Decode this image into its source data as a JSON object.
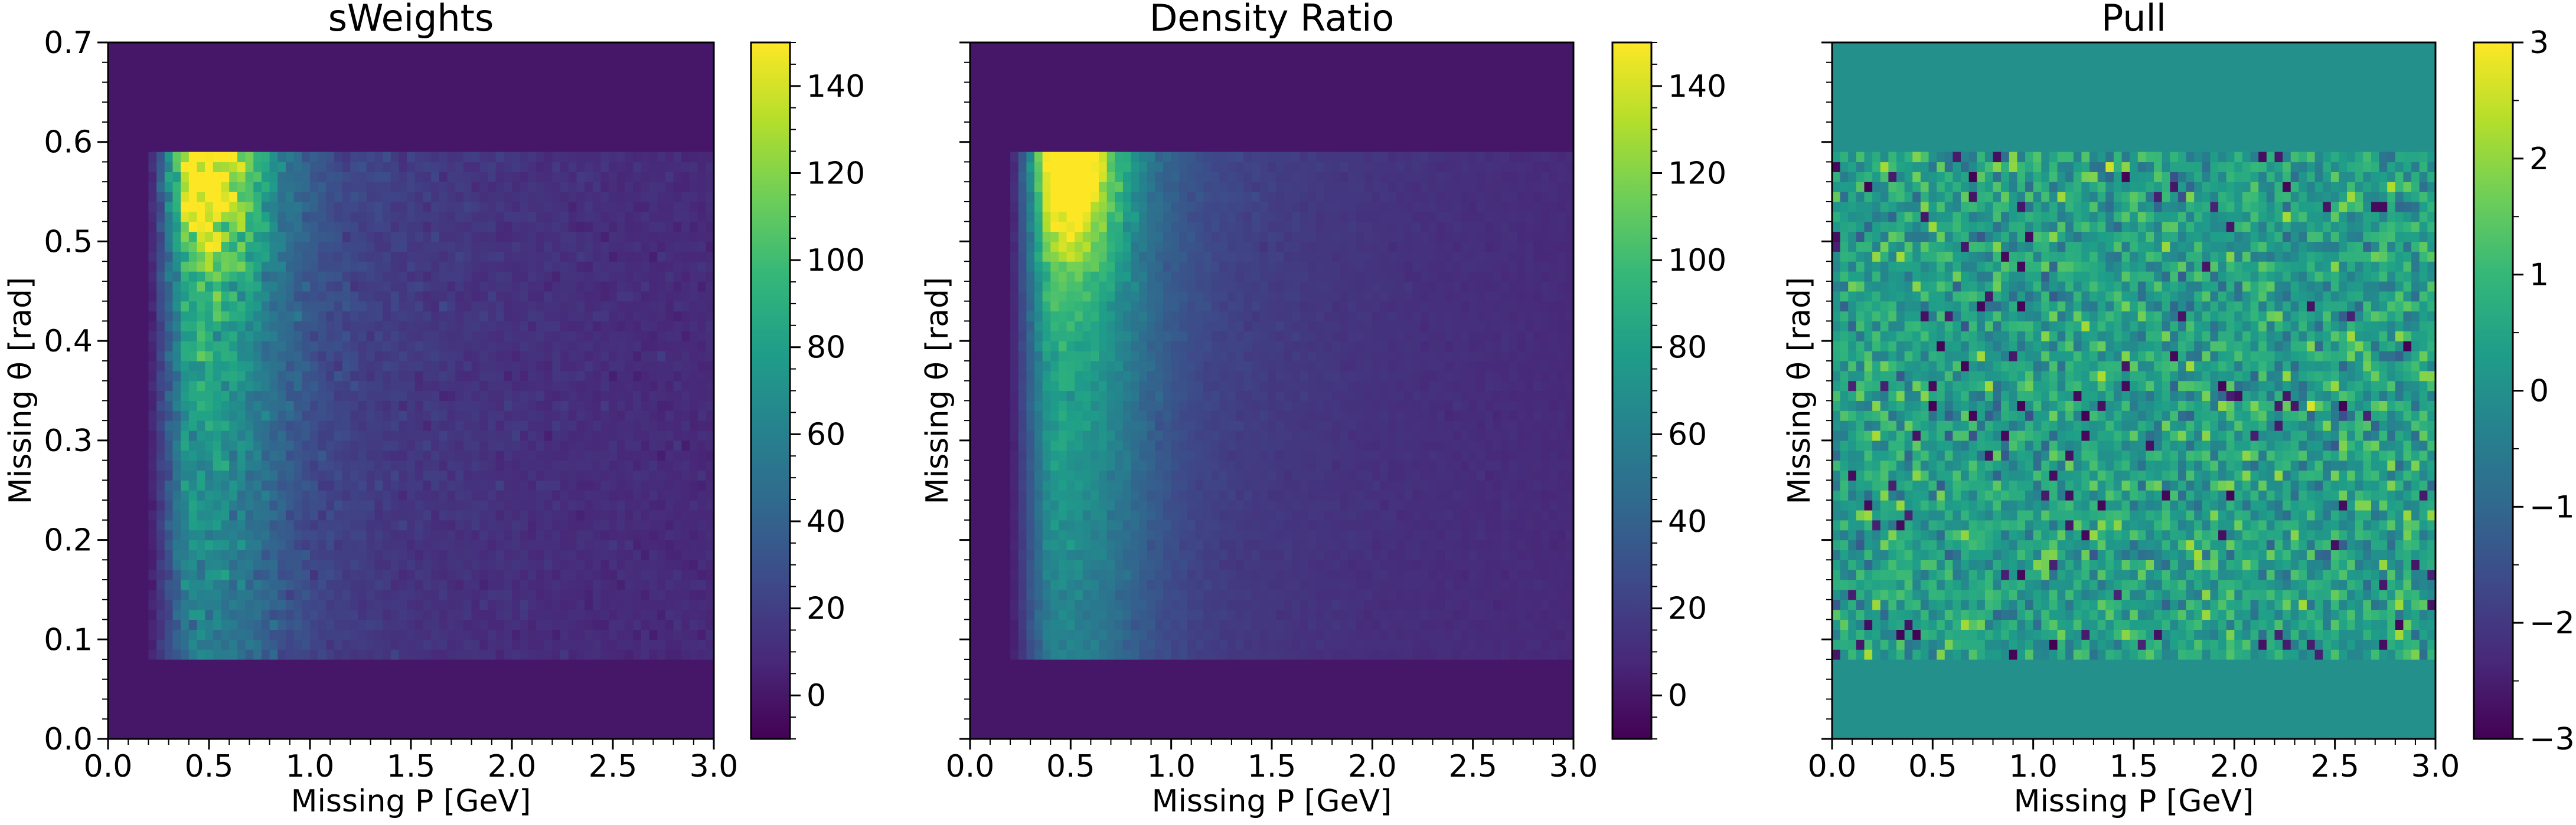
{
  "chart_data": [
    {
      "type": "heatmap",
      "title": "sWeights",
      "xlabel": "Missing P [GeV]",
      "ylabel": "Missing θ [rad]",
      "xlim": [
        0,
        3.0
      ],
      "ylim": [
        0,
        0.7
      ],
      "xticks": [
        "0.0",
        "0.5",
        "1.0",
        "1.5",
        "2.0",
        "2.5",
        "3.0"
      ],
      "yticks": [
        "0.0",
        "0.1",
        "0.2",
        "0.3",
        "0.4",
        "0.5",
        "0.6",
        "0.7"
      ],
      "colorbar": {
        "range": [
          -10,
          150
        ],
        "ticks": [
          "0",
          "20",
          "40",
          "60",
          "80",
          "100",
          "120",
          "140"
        ],
        "colormap": "viridis"
      },
      "populated_region": {
        "x": [
          0.2,
          3.0
        ],
        "y": [
          0.08,
          0.585
        ]
      },
      "peak": {
        "x": 0.45,
        "y": 0.56,
        "value": 125
      },
      "background_value": 0
    },
    {
      "type": "heatmap",
      "title": "Density Ratio",
      "xlabel": "Missing P [GeV]",
      "ylabel": "Missing θ [rad]",
      "xlim": [
        0,
        3.0
      ],
      "ylim": [
        0,
        0.7
      ],
      "xticks": [
        "0.0",
        "0.5",
        "1.0",
        "1.5",
        "2.0",
        "2.5",
        "3.0"
      ],
      "yticks": [
        "0.0",
        "0.1",
        "0.2",
        "0.3",
        "0.4",
        "0.5",
        "0.6",
        "0.7"
      ],
      "colorbar": {
        "range": [
          -10,
          150
        ],
        "ticks": [
          "0",
          "20",
          "40",
          "60",
          "80",
          "100",
          "120",
          "140"
        ],
        "colormap": "viridis"
      },
      "populated_region": {
        "x": [
          0.2,
          3.0
        ],
        "y": [
          0.08,
          0.585
        ]
      },
      "peak": {
        "x": 0.45,
        "y": 0.57,
        "value": 130
      },
      "background_value": 0
    },
    {
      "type": "heatmap",
      "title": "Pull",
      "xlabel": "Missing P [GeV]",
      "ylabel": "Missing θ [rad]",
      "xlim": [
        0,
        3.0
      ],
      "ylim": [
        0,
        0.7
      ],
      "xticks": [
        "0.0",
        "0.5",
        "1.0",
        "1.5",
        "2.0",
        "2.5",
        "3.0"
      ],
      "yticks": [
        "0.0",
        "0.1",
        "0.2",
        "0.3",
        "0.4",
        "0.5",
        "0.6",
        "0.7"
      ],
      "colorbar": {
        "range": [
          -3,
          3
        ],
        "ticks": [
          "−3",
          "−2",
          "−1",
          "0",
          "1",
          "2",
          "3"
        ],
        "colormap": "viridis"
      },
      "populated_region": {
        "x": [
          0.0,
          3.0
        ],
        "y": [
          0.08,
          0.585
        ]
      },
      "background_value": 0
    }
  ]
}
